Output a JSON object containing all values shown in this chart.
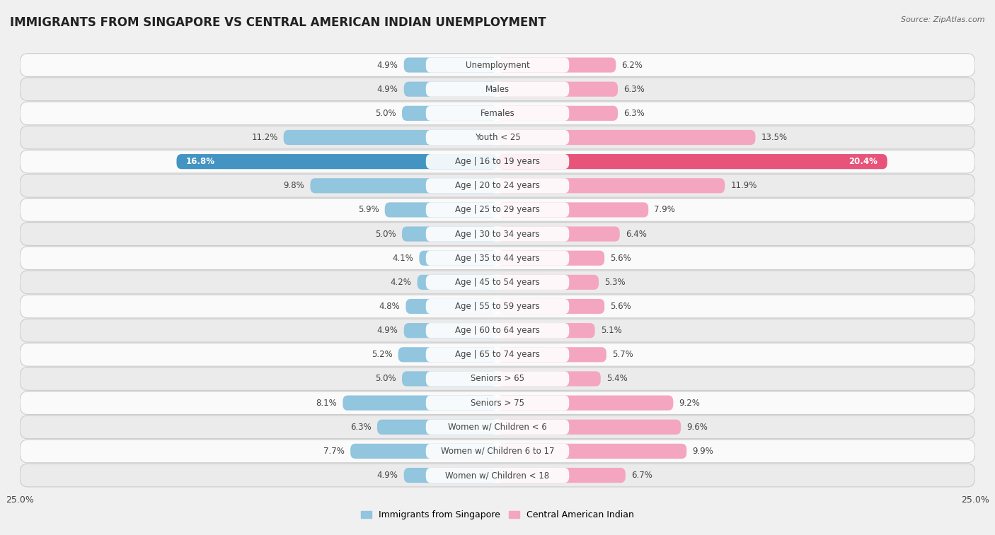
{
  "title": "IMMIGRANTS FROM SINGAPORE VS CENTRAL AMERICAN INDIAN UNEMPLOYMENT",
  "source": "Source: ZipAtlas.com",
  "categories": [
    "Unemployment",
    "Males",
    "Females",
    "Youth < 25",
    "Age | 16 to 19 years",
    "Age | 20 to 24 years",
    "Age | 25 to 29 years",
    "Age | 30 to 34 years",
    "Age | 35 to 44 years",
    "Age | 45 to 54 years",
    "Age | 55 to 59 years",
    "Age | 60 to 64 years",
    "Age | 65 to 74 years",
    "Seniors > 65",
    "Seniors > 75",
    "Women w/ Children < 6",
    "Women w/ Children 6 to 17",
    "Women w/ Children < 18"
  ],
  "left_values": [
    4.9,
    4.9,
    5.0,
    11.2,
    16.8,
    9.8,
    5.9,
    5.0,
    4.1,
    4.2,
    4.8,
    4.9,
    5.2,
    5.0,
    8.1,
    6.3,
    7.7,
    4.9
  ],
  "right_values": [
    6.2,
    6.3,
    6.3,
    13.5,
    20.4,
    11.9,
    7.9,
    6.4,
    5.6,
    5.3,
    5.6,
    5.1,
    5.7,
    5.4,
    9.2,
    9.6,
    9.9,
    6.7
  ],
  "left_color": "#92c5de",
  "right_color": "#f4a6c0",
  "highlight_left_color": "#4393c3",
  "highlight_right_color": "#e8537a",
  "highlight_row": 4,
  "axis_limit": 25.0,
  "bg_color": "#f0f0f0",
  "row_color_light": "#fafafa",
  "row_color_dark": "#ebebeb",
  "row_border_color": "#cccccc",
  "left_label": "Immigrants from Singapore",
  "right_label": "Central American Indian",
  "title_fontsize": 12,
  "label_fontsize": 9,
  "value_fontsize": 8.5,
  "cat_fontsize": 8.5
}
